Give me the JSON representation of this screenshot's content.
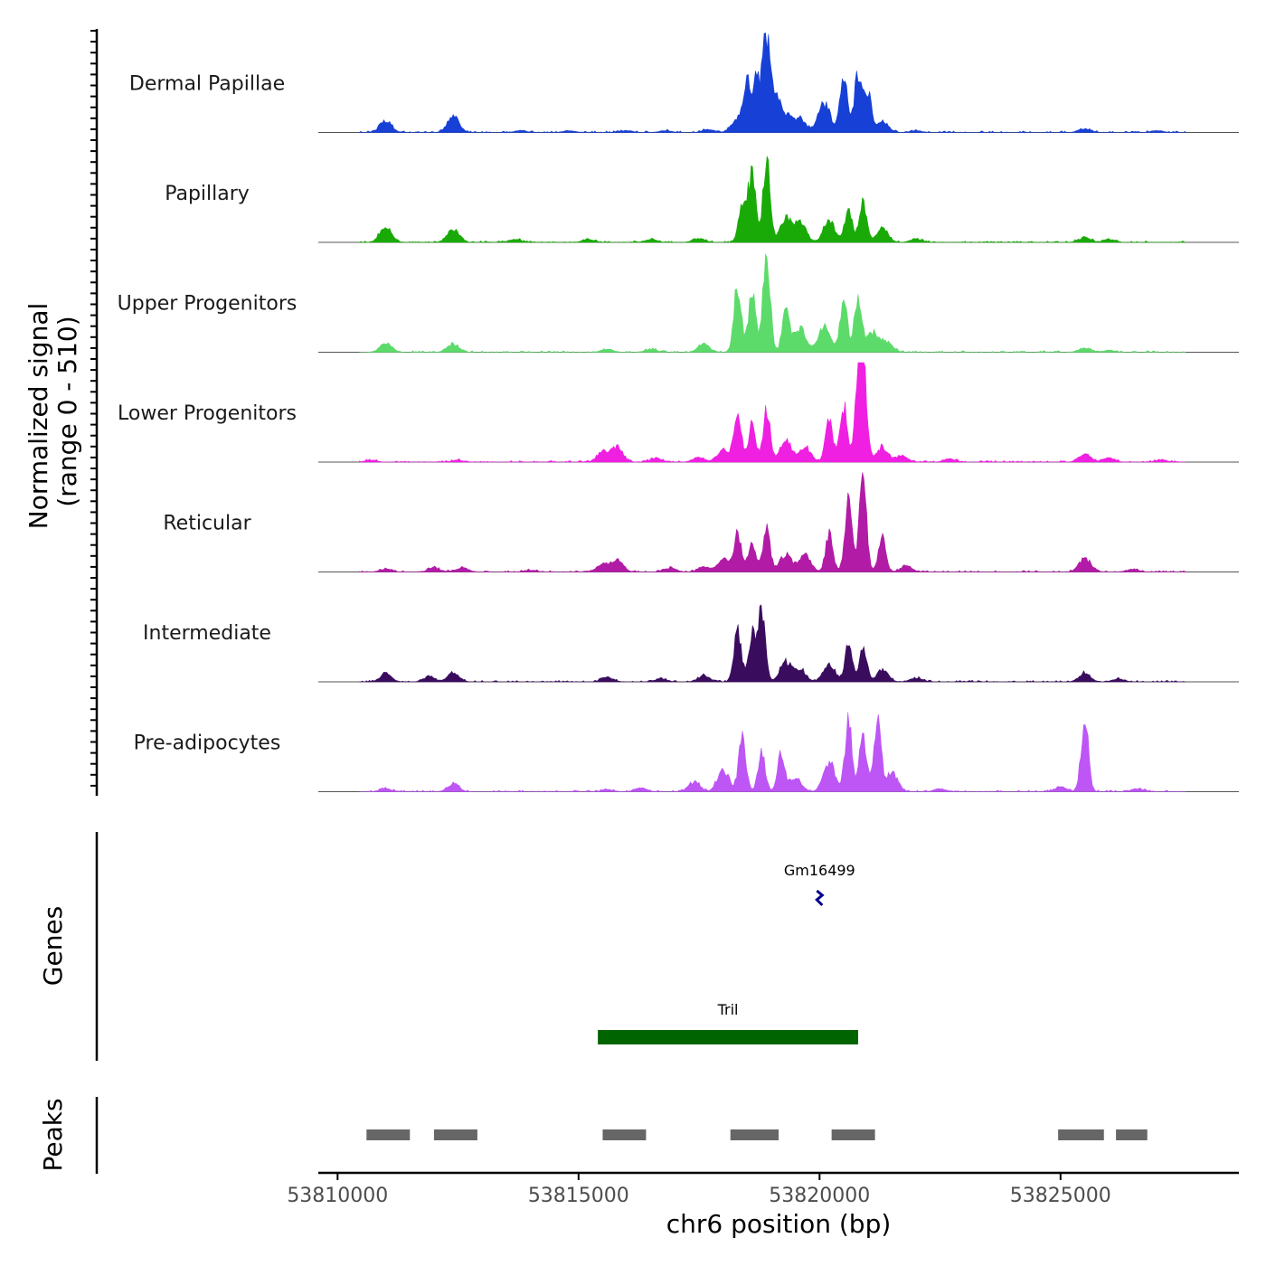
{
  "chart_data": {
    "type": "area",
    "title": "",
    "ylabel": "Normalized signal",
    "ylabel_sub": "(range 0 - 510)",
    "xlabel": "chr6 position (bp)",
    "chromosome": "chr6",
    "x_range": [
      53809600,
      53828700
    ],
    "y_range": [
      0,
      510
    ],
    "x_ticks": [
      {
        "value": 53810000,
        "label": "53810000"
      },
      {
        "value": 53815000,
        "label": "53815000"
      },
      {
        "value": 53820000,
        "label": "53820000"
      },
      {
        "value": 53825000,
        "label": "53825000"
      }
    ],
    "series": [
      {
        "name": "Dermal Papillae",
        "color": "#1740D6",
        "peaks": [
          [
            53811000,
            0.12
          ],
          [
            53812400,
            0.17
          ],
          [
            53813800,
            0.02
          ],
          [
            53814800,
            0.02
          ],
          [
            53816000,
            0.02
          ],
          [
            53816800,
            0.02
          ],
          [
            53817700,
            0.03
          ],
          [
            53818300,
            0.15
          ],
          [
            53818500,
            0.48
          ],
          [
            53818700,
            0.55
          ],
          [
            53818900,
            1.0
          ],
          [
            53819100,
            0.35
          ],
          [
            53819300,
            0.18
          ],
          [
            53819600,
            0.14
          ],
          [
            53820100,
            0.3
          ],
          [
            53820500,
            0.55
          ],
          [
            53820800,
            0.62
          ],
          [
            53821000,
            0.4
          ],
          [
            53821300,
            0.12
          ],
          [
            53822000,
            0.02
          ],
          [
            53825500,
            0.04
          ],
          [
            53827000,
            0.02
          ]
        ]
      },
      {
        "name": "Papillary",
        "color": "#1AAA08",
        "peaks": [
          [
            53811000,
            0.17
          ],
          [
            53812400,
            0.13
          ],
          [
            53813700,
            0.03
          ],
          [
            53815200,
            0.03
          ],
          [
            53816500,
            0.03
          ],
          [
            53817500,
            0.04
          ],
          [
            53818400,
            0.42
          ],
          [
            53818600,
            0.72
          ],
          [
            53818900,
            0.82
          ],
          [
            53819300,
            0.24
          ],
          [
            53819600,
            0.2
          ],
          [
            53820200,
            0.22
          ],
          [
            53820600,
            0.36
          ],
          [
            53820900,
            0.4
          ],
          [
            53821300,
            0.14
          ],
          [
            53822000,
            0.03
          ],
          [
            53825500,
            0.05
          ],
          [
            53826000,
            0.03
          ]
        ]
      },
      {
        "name": "Upper Progenitors",
        "color": "#5CDB6A",
        "peaks": [
          [
            53811000,
            0.09
          ],
          [
            53812400,
            0.08
          ],
          [
            53815600,
            0.03
          ],
          [
            53816500,
            0.03
          ],
          [
            53817600,
            0.08
          ],
          [
            53818300,
            0.7
          ],
          [
            53818600,
            0.62
          ],
          [
            53818900,
            1.0
          ],
          [
            53819300,
            0.42
          ],
          [
            53819600,
            0.25
          ],
          [
            53820100,
            0.28
          ],
          [
            53820500,
            0.55
          ],
          [
            53820800,
            0.6
          ],
          [
            53821100,
            0.2
          ],
          [
            53821400,
            0.1
          ],
          [
            53825500,
            0.04
          ],
          [
            53826000,
            0.02
          ]
        ]
      },
      {
        "name": "Lower Progenitors",
        "color": "#F020E2",
        "peaks": [
          [
            53810700,
            0.02
          ],
          [
            53812500,
            0.02
          ],
          [
            53815500,
            0.1
          ],
          [
            53815800,
            0.15
          ],
          [
            53816600,
            0.04
          ],
          [
            53817500,
            0.05
          ],
          [
            53818000,
            0.12
          ],
          [
            53818300,
            0.55
          ],
          [
            53818600,
            0.38
          ],
          [
            53818900,
            0.52
          ],
          [
            53819300,
            0.22
          ],
          [
            53819700,
            0.15
          ],
          [
            53820200,
            0.45
          ],
          [
            53820500,
            0.6
          ],
          [
            53820800,
            0.72
          ],
          [
            53820900,
            0.98
          ],
          [
            53821300,
            0.15
          ],
          [
            53821700,
            0.06
          ],
          [
            53822700,
            0.03
          ],
          [
            53825500,
            0.09
          ],
          [
            53826000,
            0.04
          ],
          [
            53827100,
            0.02
          ]
        ]
      },
      {
        "name": "Reticular",
        "color": "#B21BA6",
        "peaks": [
          [
            53811000,
            0.03
          ],
          [
            53812000,
            0.04
          ],
          [
            53812600,
            0.04
          ],
          [
            53814000,
            0.02
          ],
          [
            53815500,
            0.08
          ],
          [
            53815800,
            0.12
          ],
          [
            53816900,
            0.04
          ],
          [
            53817600,
            0.05
          ],
          [
            53818000,
            0.13
          ],
          [
            53818300,
            0.4
          ],
          [
            53818600,
            0.32
          ],
          [
            53818900,
            0.45
          ],
          [
            53819300,
            0.18
          ],
          [
            53819700,
            0.17
          ],
          [
            53820200,
            0.38
          ],
          [
            53820600,
            0.72
          ],
          [
            53820900,
            0.92
          ],
          [
            53821300,
            0.35
          ],
          [
            53821800,
            0.06
          ],
          [
            53825500,
            0.14
          ],
          [
            53826500,
            0.03
          ]
        ]
      },
      {
        "name": "Intermediate",
        "color": "#3A0C5E",
        "peaks": [
          [
            53811000,
            0.08
          ],
          [
            53811900,
            0.05
          ],
          [
            53812400,
            0.09
          ],
          [
            53815600,
            0.05
          ],
          [
            53816700,
            0.03
          ],
          [
            53817600,
            0.06
          ],
          [
            53818300,
            0.55
          ],
          [
            53818600,
            0.5
          ],
          [
            53818800,
            0.72
          ],
          [
            53819300,
            0.2
          ],
          [
            53819600,
            0.12
          ],
          [
            53820200,
            0.18
          ],
          [
            53820600,
            0.38
          ],
          [
            53820900,
            0.35
          ],
          [
            53821300,
            0.12
          ],
          [
            53822000,
            0.04
          ],
          [
            53825500,
            0.09
          ],
          [
            53826200,
            0.03
          ]
        ]
      },
      {
        "name": "Pre-adipocytes",
        "color": "#BE55F5",
        "peaks": [
          [
            53811000,
            0.03
          ],
          [
            53812400,
            0.08
          ],
          [
            53815600,
            0.02
          ],
          [
            53816300,
            0.04
          ],
          [
            53817400,
            0.1
          ],
          [
            53818000,
            0.22
          ],
          [
            53818400,
            0.55
          ],
          [
            53818800,
            0.4
          ],
          [
            53819200,
            0.38
          ],
          [
            53819500,
            0.15
          ],
          [
            53820200,
            0.3
          ],
          [
            53820600,
            0.72
          ],
          [
            53820900,
            0.58
          ],
          [
            53821200,
            0.7
          ],
          [
            53821500,
            0.2
          ],
          [
            53822500,
            0.03
          ],
          [
            53825000,
            0.05
          ],
          [
            53825500,
            0.75
          ],
          [
            53826600,
            0.03
          ]
        ]
      }
    ],
    "genes": [
      {
        "name": "Gm16499",
        "start": 53819950,
        "end": 53820050,
        "color": "#00008B"
      },
      {
        "name": "Tril",
        "start": 53815400,
        "end": 53820800,
        "color": "#006400"
      }
    ],
    "peaks_track": {
      "label": "Peaks",
      "color": "#666666",
      "regions": [
        [
          53810600,
          53811500
        ],
        [
          53812000,
          53812900
        ],
        [
          53815500,
          53816400
        ],
        [
          53818150,
          53819150
        ],
        [
          53820250,
          53821150
        ],
        [
          53824950,
          53825900
        ],
        [
          53826150,
          53826800
        ]
      ]
    },
    "genes_track_label": "Genes"
  }
}
